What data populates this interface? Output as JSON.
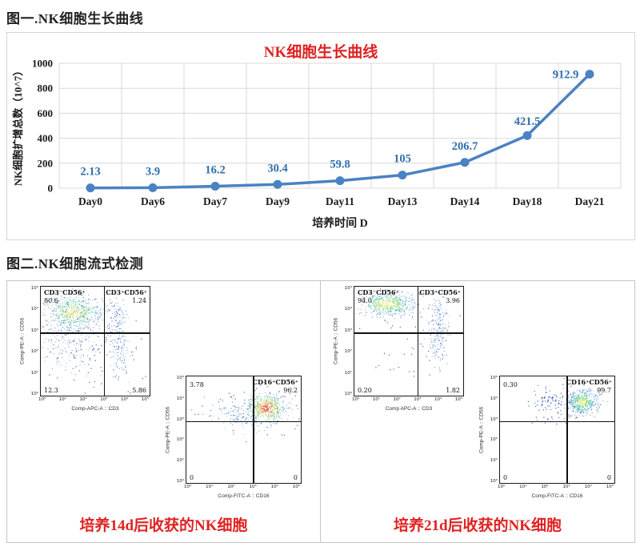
{
  "figure1": {
    "heading": "图一.NK细胞生长曲线",
    "chart": {
      "title": "NK细胞生长曲线",
      "title_color": "#e02222",
      "line_color": "#4a82c3",
      "label_color": "#2f6fae"
    }
  },
  "chart_data": {
    "type": "line",
    "title": "NK细胞生长曲线",
    "categories": [
      "Day0",
      "Day6",
      "Day7",
      "Day9",
      "Day11",
      "Day13",
      "Day14",
      "Day18",
      "Day21"
    ],
    "values": [
      2.13,
      3.9,
      16.2,
      30.4,
      59.8,
      105,
      206.7,
      421.5,
      912.9
    ],
    "point_labels": [
      "2.13",
      "3.9",
      "16.2",
      "30.4",
      "59.8",
      "105",
      "206.7",
      "421.5",
      "912.9"
    ],
    "xlabel": "培养时间 D",
    "ylabel": "NK细胞扩增总数（10^7）",
    "ylim": [
      0,
      1000
    ],
    "yticks": [
      0,
      200,
      400,
      600,
      800,
      1000
    ],
    "grid": true,
    "legend": "none",
    "marker": "circle"
  },
  "figure2": {
    "heading": "图二.NK细胞流式检测",
    "caption_color": "#e02222",
    "panels": [
      {
        "caption": "培养14d后收获的NK细胞",
        "plots": [
          {
            "xlabel": "Comp-APC-A :: CD3",
            "ylabel": "Comp-PE-A :: CD56",
            "xticks": [
              "10⁰",
              "10¹",
              "10²",
              "10³",
              "10⁴",
              "10⁵"
            ],
            "yticks": [
              "10⁰",
              "10¹",
              "10²",
              "10³",
              "10⁴",
              "10⁵"
            ],
            "quad_tl_label": "CD3⁻CD56⁺",
            "quad_tl_value": "80.6",
            "quad_tr_label": "CD3⁺CD56⁺",
            "quad_tr_value": "1.24",
            "quad_bl_value": "12.3",
            "quad_br_value": "5.86"
          },
          {
            "xlabel": "Comp-FITC-A :: CD16",
            "ylabel": "Comp-PE-A :: CD56",
            "xticks": [
              "10⁰",
              "10¹",
              "10²",
              "10³",
              "10⁴",
              "10⁵"
            ],
            "yticks": [
              "10⁰",
              "10¹",
              "10²",
              "10³",
              "10⁴",
              "10⁵"
            ],
            "quad_tl_label": "",
            "quad_tl_value": "3.78",
            "quad_tr_label": "CD16⁺CD56⁺",
            "quad_tr_value": "96.2",
            "quad_bl_value": "0",
            "quad_br_value": "0"
          }
        ]
      },
      {
        "caption": "培养21d后收获的NK细胞",
        "plots": [
          {
            "xlabel": "Comp APC-A :: CD3",
            "ylabel": "Comp-PE-A :: CD56",
            "xticks": [
              "10⁰",
              "10¹",
              "10²",
              "10³",
              "10⁴",
              "10⁵"
            ],
            "yticks": [
              "10⁰",
              "10¹",
              "10²",
              "10³",
              "10⁴",
              "10⁵"
            ],
            "quad_tl_label": "CD3⁻CD56⁺",
            "quad_tl_value": "94.0",
            "quad_tr_label": "CD3⁺CD56⁺",
            "quad_tr_value": "3.96",
            "quad_bl_value": "0.20",
            "quad_br_value": "1.82"
          },
          {
            "xlabel": "Comp-FITC-A :: CD16",
            "ylabel": "Comp-PE-A :: CD56",
            "xticks": [
              "10⁰",
              "10¹",
              "10²",
              "10³",
              "10⁴",
              "10⁵"
            ],
            "yticks": [
              "10⁰",
              "10¹",
              "10²",
              "10³",
              "10⁴",
              "10⁵"
            ],
            "quad_tl_label": "",
            "quad_tl_value": "0.30",
            "quad_tr_label": "CD16⁺CD56⁺",
            "quad_tr_value": "99.7",
            "quad_bl_value": "0",
            "quad_br_value": "0"
          }
        ]
      }
    ]
  }
}
